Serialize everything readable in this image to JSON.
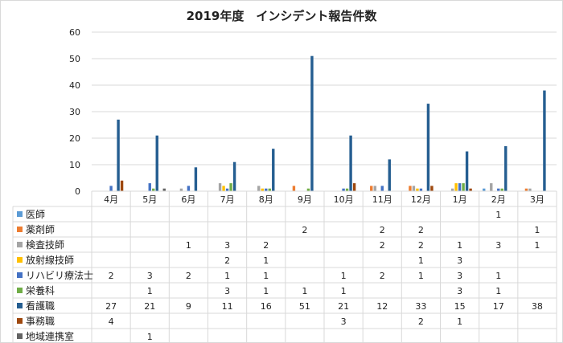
{
  "chart_data": {
    "type": "bar",
    "title": "2019年度　インシデント報告件数",
    "categories": [
      "4月",
      "5月",
      "6月",
      "7月",
      "8月",
      "9月",
      "10月",
      "11月",
      "12月",
      "1月",
      "2月",
      "3月"
    ],
    "ylim": [
      0,
      60
    ],
    "yticks": [
      0,
      10,
      20,
      30,
      40,
      50,
      60
    ],
    "grid": true,
    "legend": "data-table",
    "series": [
      {
        "name": "医師",
        "color": "#5b9bd5",
        "values": [
          null,
          null,
          null,
          null,
          null,
          null,
          null,
          null,
          null,
          null,
          1,
          null
        ]
      },
      {
        "name": "薬剤師",
        "color": "#ed7d31",
        "values": [
          null,
          null,
          null,
          null,
          null,
          2,
          null,
          2,
          2,
          null,
          null,
          1
        ]
      },
      {
        "name": "検査技師",
        "color": "#a5a5a5",
        "values": [
          null,
          null,
          1,
          3,
          2,
          null,
          null,
          2,
          2,
          1,
          3,
          1
        ]
      },
      {
        "name": "放射線技師",
        "color": "#ffc000",
        "values": [
          null,
          null,
          null,
          2,
          1,
          null,
          null,
          null,
          1,
          3,
          null,
          null
        ]
      },
      {
        "name": "リハビリ療法士",
        "color": "#4472c4",
        "values": [
          2,
          3,
          2,
          1,
          1,
          null,
          1,
          2,
          1,
          3,
          1,
          null
        ]
      },
      {
        "name": "栄養科",
        "color": "#70ad47",
        "values": [
          null,
          1,
          null,
          3,
          1,
          1,
          1,
          null,
          null,
          3,
          1,
          null
        ]
      },
      {
        "name": "看護職",
        "color": "#255e91",
        "values": [
          27,
          21,
          9,
          11,
          16,
          51,
          21,
          12,
          33,
          15,
          17,
          38
        ]
      },
      {
        "name": "事務職",
        "color": "#9e480e",
        "values": [
          4,
          null,
          null,
          null,
          null,
          null,
          3,
          null,
          2,
          1,
          null,
          null
        ]
      },
      {
        "name": "地域連携室",
        "color": "#636363",
        "values": [
          null,
          1,
          null,
          null,
          null,
          null,
          null,
          null,
          null,
          null,
          null,
          null
        ]
      }
    ]
  }
}
